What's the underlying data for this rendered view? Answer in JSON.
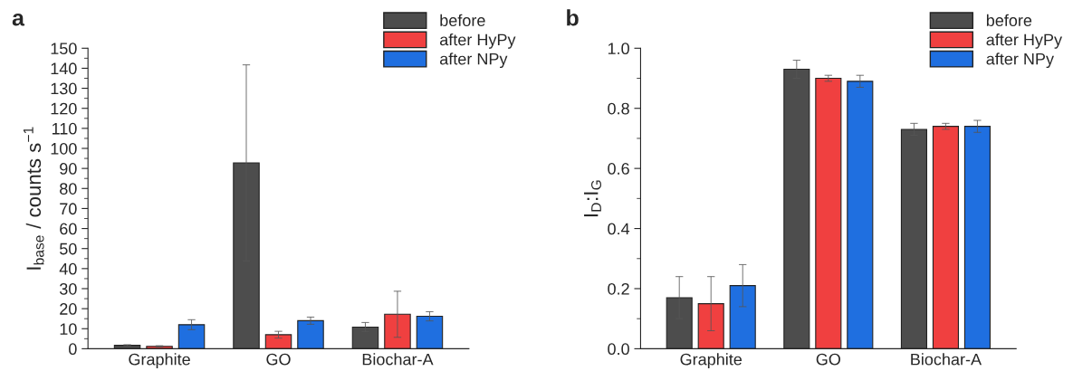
{
  "chart_data": [
    {
      "type": "bar",
      "title": "a",
      "ylabel": "I$_{base}$ / counts s$^{−1}$",
      "categories": [
        "Graphite",
        "GO",
        "Biochar-A"
      ],
      "series": [
        {
          "name": "before",
          "color": "#4d4d4d",
          "values": [
            1.7,
            92.7,
            10.8
          ],
          "errors": [
            0.3,
            49,
            2.3
          ]
        },
        {
          "name": "after HyPy",
          "color": "#f04040",
          "values": [
            1.2,
            7,
            17.2
          ],
          "errors": [
            0.3,
            1.7,
            11.5
          ]
        },
        {
          "name": "after NPy",
          "color": "#1f6fe0",
          "values": [
            12,
            14,
            16.2
          ],
          "errors": [
            2.5,
            1.8,
            2.3
          ]
        }
      ],
      "ylim": [
        0,
        150
      ],
      "yticks": [
        0,
        10,
        20,
        30,
        40,
        50,
        60,
        70,
        80,
        90,
        100,
        110,
        120,
        130,
        140,
        150
      ],
      "grid": false,
      "legend": "top right"
    },
    {
      "type": "bar",
      "title": "b",
      "ylabel": "I$_{D}$:I$_{G}$",
      "categories": [
        "Graphite",
        "GO",
        "Biochar-A"
      ],
      "series": [
        {
          "name": "before",
          "color": "#4d4d4d",
          "values": [
            0.17,
            0.93,
            0.73
          ],
          "errors": [
            0.07,
            0.03,
            0.02
          ]
        },
        {
          "name": "after HyPy",
          "color": "#f04040",
          "values": [
            0.15,
            0.9,
            0.74
          ],
          "errors": [
            0.09,
            0.01,
            0.01
          ]
        },
        {
          "name": "after NPy",
          "color": "#1f6fe0",
          "values": [
            0.21,
            0.89,
            0.74
          ],
          "errors": [
            0.07,
            0.02,
            0.02
          ]
        }
      ],
      "ylim": [
        0,
        1.0
      ],
      "yticks": [
        {
          "value": 0,
          "label": "0.0"
        },
        0.2,
        0.4,
        0.6,
        0.8,
        {
          "value": 1.0,
          "label": "1.0"
        }
      ],
      "grid": false,
      "legend": "top right"
    }
  ]
}
